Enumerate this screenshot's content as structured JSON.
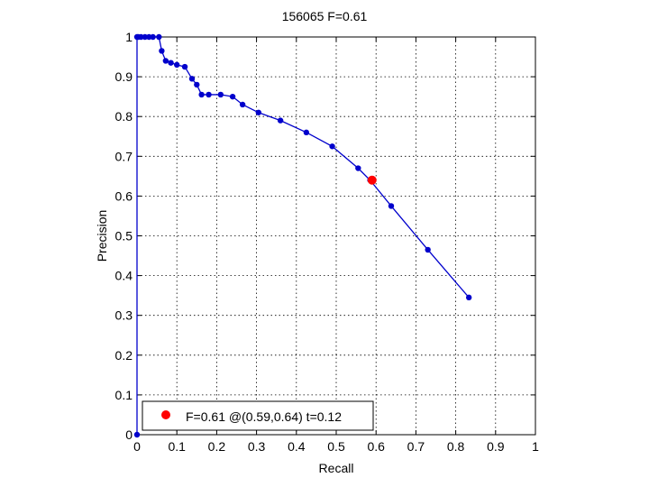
{
  "chart_data": {
    "type": "line",
    "title": "156065 F=0.61",
    "xlabel": "Recall",
    "ylabel": "Precision",
    "xlim": [
      0,
      1
    ],
    "ylim": [
      0,
      1
    ],
    "grid": true,
    "legend_position": "bottom-left",
    "x_ticks": [
      "0",
      "0.1",
      "0.2",
      "0.3",
      "0.4",
      "0.5",
      "0.6",
      "0.7",
      "0.8",
      "0.9",
      "1"
    ],
    "y_ticks": [
      "0",
      "0.1",
      "0.2",
      "0.3",
      "0.4",
      "0.5",
      "0.6",
      "0.7",
      "0.8",
      "0.9",
      "1"
    ],
    "series": [
      {
        "color": "#0000cc",
        "x": [
          0.0,
          0.0,
          0.003,
          0.01,
          0.02,
          0.03,
          0.04,
          0.055,
          0.062,
          0.072,
          0.085,
          0.1,
          0.12,
          0.138,
          0.15,
          0.162,
          0.18,
          0.21,
          0.24,
          0.265,
          0.305,
          0.36,
          0.425,
          0.49,
          0.555,
          0.585,
          0.638,
          0.73,
          0.833
        ],
        "y": [
          0.0,
          1.0,
          1.0,
          1.0,
          1.0,
          1.0,
          1.0,
          1.0,
          0.965,
          0.94,
          0.935,
          0.93,
          0.925,
          0.895,
          0.88,
          0.855,
          0.855,
          0.855,
          0.85,
          0.83,
          0.81,
          0.79,
          0.76,
          0.725,
          0.67,
          0.64,
          0.575,
          0.465,
          0.345
        ]
      }
    ],
    "highlight": {
      "x": 0.59,
      "y": 0.64,
      "color": "#ff0000"
    },
    "legend": [
      {
        "label": "F=0.61 @(0.59,0.64) t=0.12",
        "color": "#ff0000"
      }
    ]
  }
}
